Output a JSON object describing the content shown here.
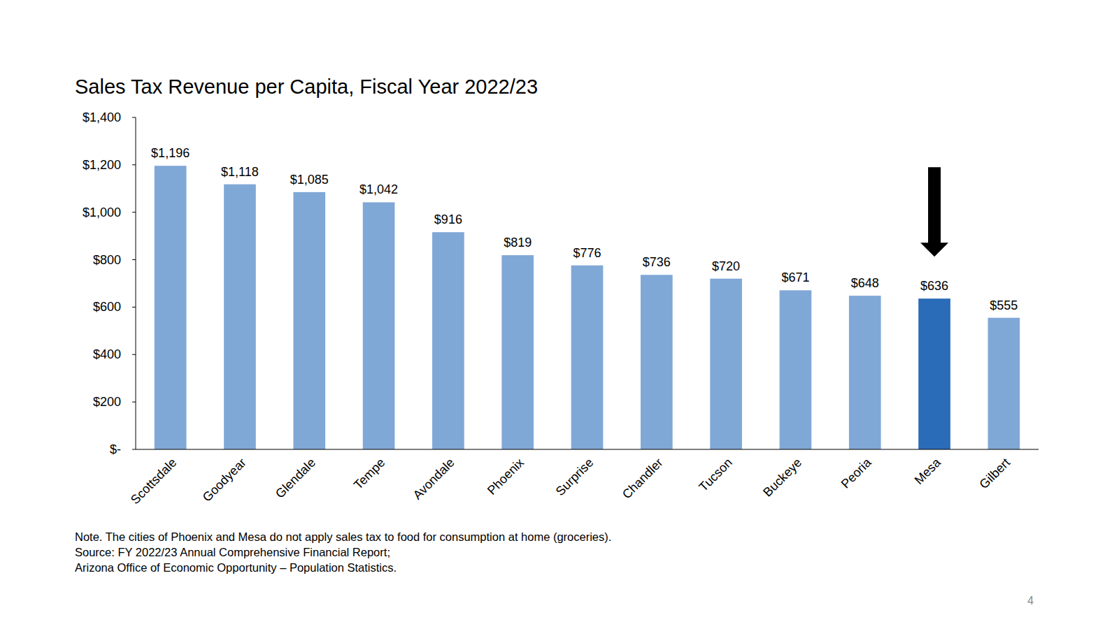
{
  "chart_data": {
    "type": "bar",
    "title": "Sales Tax Revenue per Capita, Fiscal Year 2022/23",
    "categories": [
      "Scottsdale",
      "Goodyear",
      "Glendale",
      "Tempe",
      "Avondale",
      "Phoenix",
      "Surprise",
      "Chandler",
      "Tucson",
      "Buckeye",
      "Peoria",
      "Mesa",
      "Gilbert"
    ],
    "values": [
      1196,
      1118,
      1085,
      1042,
      916,
      819,
      776,
      736,
      720,
      671,
      648,
      636,
      555
    ],
    "value_labels": [
      "$1,196",
      "$1,118",
      "$1,085",
      "$1,042",
      "$916",
      "$819",
      "$776",
      "$736",
      "$720",
      "$671",
      "$648",
      "$636",
      "$555"
    ],
    "colors": [
      "#80a8d6",
      "#80a8d6",
      "#80a8d6",
      "#80a8d6",
      "#80a8d6",
      "#80a8d6",
      "#80a8d6",
      "#80a8d6",
      "#80a8d6",
      "#80a8d6",
      "#80a8d6",
      "#2b6cb8",
      "#80a8d6"
    ],
    "ylim": [
      0,
      1400
    ],
    "yticks": [
      {
        "value": 0,
        "label": "$-"
      },
      {
        "value": 200,
        "label": "$200"
      },
      {
        "value": 400,
        "label": "$400"
      },
      {
        "value": 600,
        "label": "$600"
      },
      {
        "value": 800,
        "label": "$800"
      },
      {
        "value": 1000,
        "label": "$1,000"
      },
      {
        "value": 1200,
        "label": "$1,200"
      },
      {
        "value": 1400,
        "label": "$1,400"
      }
    ],
    "grid": false,
    "data_labels": true,
    "annotations": [
      "Note. The cities of Phoenix and Mesa do not apply sales tax to food for consumption at home (groceries).",
      "Source: FY 2022/23 Annual Comprehensive Financial Report;",
      "Arizona Office of Economic Opportunity – Population Statistics."
    ],
    "page_number": 4
  }
}
